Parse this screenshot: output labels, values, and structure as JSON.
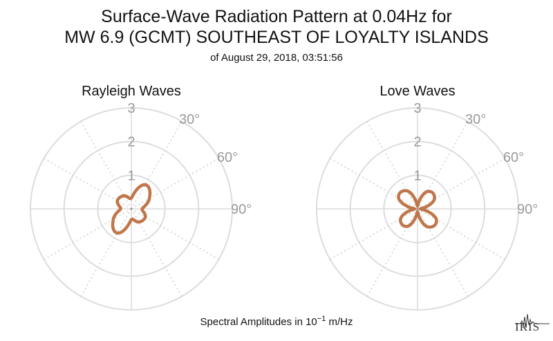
{
  "title_line1": "Surface-Wave Radiation Pattern at 0.04Hz for",
  "title_line2": "MW 6.9 (GCMT) SOUTHEAST OF LOYALTY ISLANDS",
  "subtitle": "of August 29, 2018, 03:51:56",
  "footer": {
    "prefix": "Spectral Amplitudes in ",
    "base": "10",
    "exponent": "−1",
    "unit": " m/Hz"
  },
  "logo_text": "IRIS",
  "colors": {
    "pattern": "#c0764a",
    "grid": "#dcdcdc",
    "tick_text": "#9a9a9a"
  },
  "chart_data": [
    {
      "type": "polar",
      "title": "Rayleigh Waves",
      "r_ticks": [
        "1",
        "2",
        "3"
      ],
      "theta_ticks": [
        "30°",
        "60°",
        "90°"
      ],
      "rlim": [
        0,
        3
      ],
      "grid": true,
      "series": [
        {
          "azimuth_deg": [
            0,
            30,
            60,
            90,
            120,
            150,
            180,
            210,
            240,
            270,
            300,
            330
          ],
          "amplitude": [
            0.32,
            0.83,
            0.62,
            0.32,
            0.48,
            0.45,
            0.32,
            0.83,
            0.62,
            0.32,
            0.48,
            0.45
          ]
        }
      ]
    },
    {
      "type": "polar",
      "title": "Love Waves",
      "r_ticks": [
        "1",
        "2",
        "3"
      ],
      "theta_ticks": [
        "30°",
        "60°",
        "90°"
      ],
      "rlim": [
        0,
        3
      ],
      "grid": true,
      "series": [
        {
          "azimuth_deg": [
            0,
            30,
            60,
            90,
            120,
            150,
            180,
            210,
            240,
            270,
            300,
            330
          ],
          "amplitude": [
            0.08,
            0.6,
            0.58,
            0.08,
            0.65,
            0.62,
            0.08,
            0.6,
            0.58,
            0.08,
            0.65,
            0.62
          ]
        }
      ]
    }
  ]
}
